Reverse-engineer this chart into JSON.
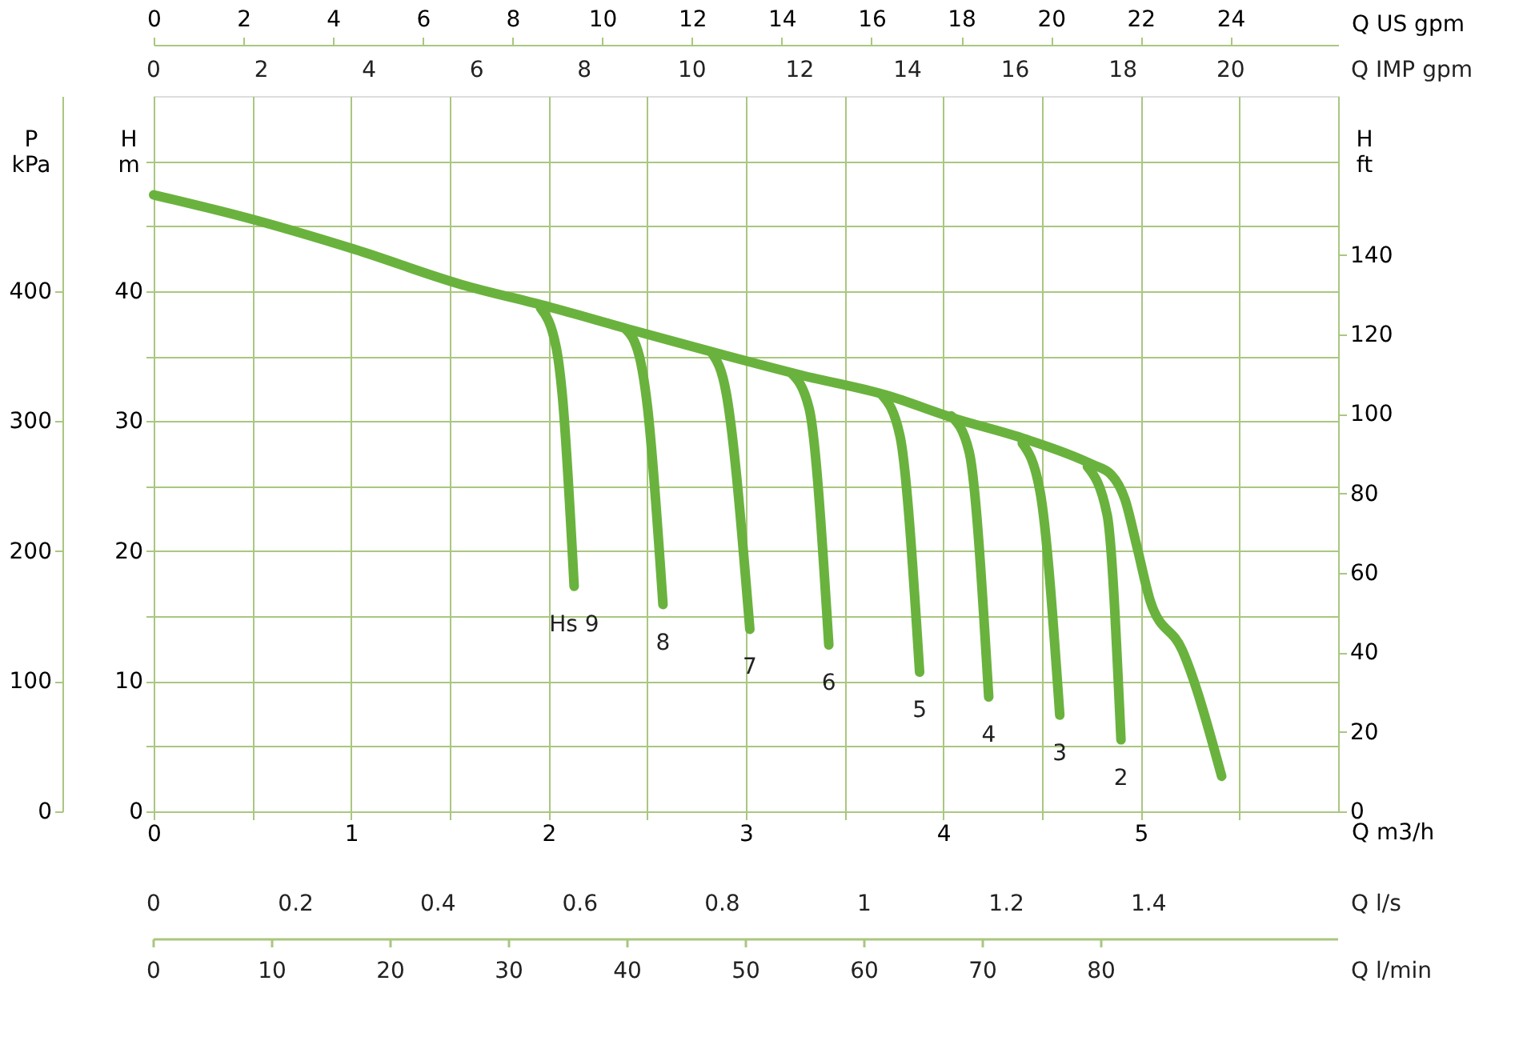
{
  "chart_data": {
    "type": "line",
    "xlabel": "Q m3/h",
    "x2label": "Q US gpm",
    "annotations": [
      "Q IMP gpm",
      "0",
      "2",
      "4",
      "6",
      "8",
      "10",
      "12",
      "14",
      "16",
      "18",
      "20",
      "Q l/s",
      "0",
      "0.2",
      "0.4",
      "0.6",
      "0.8",
      "1",
      "1.2",
      "1.4",
      "Q l/min",
      "0",
      "10",
      "20",
      "30",
      "40",
      "50",
      "60",
      "70",
      "80"
    ],
    "ylabel": "H\nm",
    "y2label": "H\nft",
    "y3label": "P\nkPa",
    "xlim": [
      0,
      6
    ],
    "xticks": [
      0,
      {
        "value": 0.5,
        "label": null
      },
      1,
      {
        "value": 1.5,
        "label": null
      },
      2,
      {
        "value": 2.5,
        "label": null
      },
      3,
      {
        "value": 3.5,
        "label": null
      },
      4,
      {
        "value": 4.5,
        "label": null
      },
      5,
      {
        "value": 5.5,
        "label": null
      }
    ],
    "ylim": [
      0,
      55
    ],
    "yticks": [
      0,
      {
        "value": 5,
        "label": null
      },
      10,
      {
        "value": 15,
        "label": null
      },
      20,
      {
        "value": 25,
        "label": null
      },
      30,
      {
        "value": 35,
        "label": null
      },
      40,
      {
        "value": 45,
        "label": null
      },
      {
        "value": 50,
        "label": null
      }
    ],
    "y2lim": [
      0,
      180
    ],
    "y2ticks": [
      0,
      20,
      40,
      60,
      80,
      100,
      120,
      140
    ],
    "y3lim": [
      0,
      550
    ],
    "y3ticks": [
      0,
      100,
      200,
      300,
      400
    ],
    "x2lim": [
      0,
      26.4
    ],
    "x2ticks": [
      0,
      2,
      4,
      6,
      8,
      10,
      12,
      14,
      16,
      18,
      20,
      22,
      24
    ],
    "grid": true,
    "series": [
      {
        "color": "#6ab23e",
        "x": [
          0,
          0.48,
          1.02,
          1.56,
          2.0,
          2.4,
          2.86,
          3.29,
          3.71,
          4.06,
          4.4,
          4.75,
          4.85,
          4.92,
          4.98,
          5.05,
          5.21,
          5.41
        ],
        "values": [
          47.4,
          45.6,
          43.2,
          40.5,
          38.8,
          37.1,
          35.2,
          33.5,
          32.0,
          30.2,
          28.7,
          26.7,
          25.9,
          24.0,
          20.4,
          16.1,
          12.4,
          2.7
        ]
      },
      {
        "name": "Hs 9",
        "color": "#6ab23e",
        "x": [
          1.96,
          2.04,
          2.07,
          2.13
        ],
        "values": [
          38.7,
          35.6,
          32.0,
          17.3
        ]
      },
      {
        "name": "8",
        "color": "#6ab23e",
        "x": [
          2.39,
          2.46,
          2.5,
          2.58
        ],
        "values": [
          37.1,
          35.0,
          31.3,
          15.9
        ]
      },
      {
        "name": "7",
        "color": "#6ab23e",
        "x": [
          2.83,
          2.9,
          3.02
        ],
        "values": [
          35.2,
          32.2,
          14.0
        ]
      },
      {
        "name": "6",
        "color": "#6ab23e",
        "x": [
          3.23,
          3.32,
          3.42
        ],
        "values": [
          33.7,
          31.0,
          12.8
        ]
      },
      {
        "name": "5",
        "color": "#6ab23e",
        "x": [
          3.69,
          3.78,
          3.88
        ],
        "values": [
          32.0,
          28.9,
          10.7
        ]
      },
      {
        "name": "4",
        "color": "#6ab23e",
        "x": [
          4.04,
          4.13,
          4.23
        ],
        "values": [
          30.4,
          27.7,
          8.8
        ]
      },
      {
        "name": "3",
        "color": "#6ab23e",
        "x": [
          4.4,
          4.49,
          4.59
        ],
        "values": [
          28.3,
          24.6,
          7.4
        ]
      },
      {
        "name": "2",
        "color": "#6ab23e",
        "x": [
          4.73,
          4.83,
          4.9
        ],
        "values": [
          26.5,
          22.8,
          5.5
        ]
      }
    ]
  }
}
